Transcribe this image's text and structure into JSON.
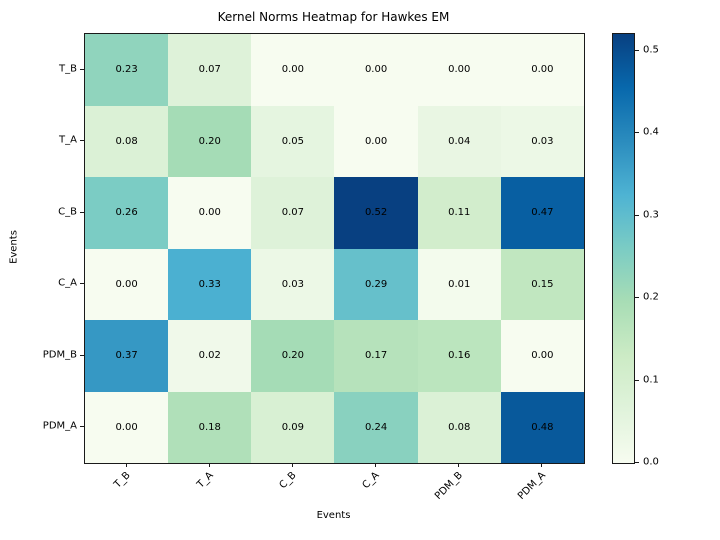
{
  "chart_data": {
    "type": "heatmap",
    "title": "Kernel Norms Heatmap for Hawkes EM",
    "xlabel": "Events",
    "ylabel": "Events",
    "x_categories": [
      "T_B",
      "T_A",
      "C_B",
      "C_A",
      "PDM_B",
      "PDM_A"
    ],
    "y_categories": [
      "T_B",
      "T_A",
      "C_B",
      "C_A",
      "PDM_B",
      "PDM_A"
    ],
    "values": [
      [
        0.23,
        0.07,
        0.0,
        0.0,
        0.0,
        0.0
      ],
      [
        0.08,
        0.2,
        0.05,
        0.0,
        0.04,
        0.03
      ],
      [
        0.26,
        0.0,
        0.07,
        0.52,
        0.11,
        0.47
      ],
      [
        0.0,
        0.33,
        0.03,
        0.29,
        0.01,
        0.15
      ],
      [
        0.37,
        0.02,
        0.2,
        0.17,
        0.16,
        0.0
      ],
      [
        0.0,
        0.18,
        0.09,
        0.24,
        0.08,
        0.48
      ]
    ],
    "value_format_decimals": 2,
    "vmin": 0.0,
    "vmax": 0.52,
    "colormap_name": "GnBu",
    "colormap_stops": [
      "#f7fcf0",
      "#e0f3db",
      "#ccebc5",
      "#a8ddb5",
      "#7bccc4",
      "#4eb3d3",
      "#2b8cbe",
      "#0868ac",
      "#084081"
    ],
    "annotation_color": "#000000",
    "colorbar_ticks": [
      {
        "label": "0.0",
        "value": 0.0
      },
      {
        "label": "0.1",
        "value": 0.1
      },
      {
        "label": "0.2",
        "value": 0.2
      },
      {
        "label": "0.3",
        "value": 0.3
      },
      {
        "label": "0.4",
        "value": 0.4
      },
      {
        "label": "0.5",
        "value": 0.5
      }
    ],
    "legend_position": "colorbar-right",
    "grid": false
  }
}
